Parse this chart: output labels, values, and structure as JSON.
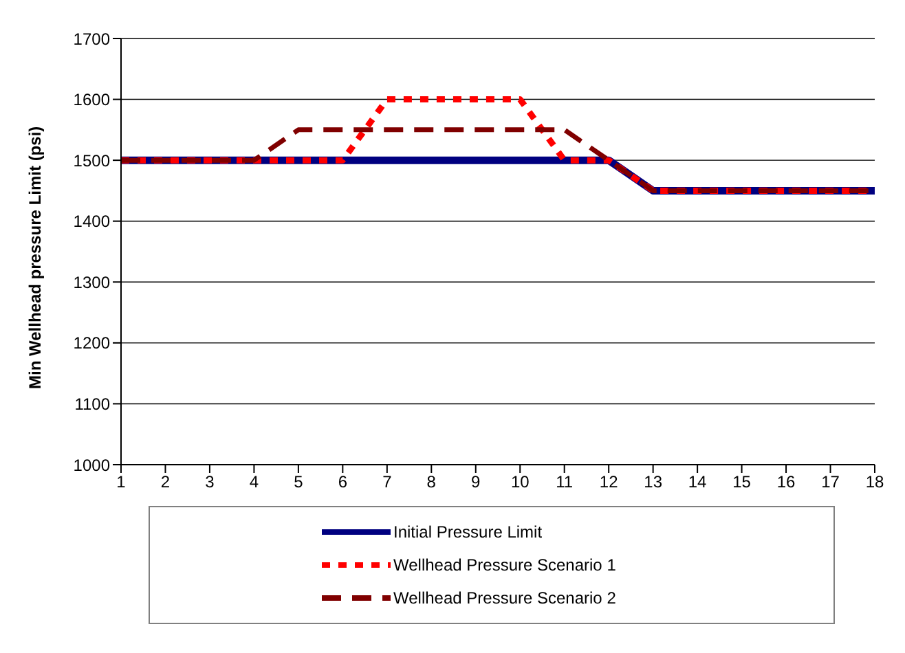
{
  "chart_data": {
    "type": "line",
    "ylabel": "Min Wellhead pressure Limit (psi)",
    "x": [
      1,
      2,
      3,
      4,
      5,
      6,
      7,
      8,
      9,
      10,
      11,
      12,
      13,
      14,
      15,
      16,
      17,
      18
    ],
    "xlim": [
      1,
      18
    ],
    "xticks": [
      1,
      2,
      3,
      4,
      5,
      6,
      7,
      8,
      9,
      10,
      11,
      12,
      13,
      14,
      15,
      16,
      17,
      18
    ],
    "ylim": [
      1000,
      1700
    ],
    "yticks": [
      1000,
      1100,
      1200,
      1300,
      1400,
      1500,
      1600,
      1700
    ],
    "grid": "y",
    "legend": "bottom",
    "marker": "none",
    "series": [
      {
        "name": "Initial Pressure Limit",
        "color": "#000080",
        "line_style": "solid",
        "values": [
          1500,
          1500,
          1500,
          1500,
          1500,
          1500,
          1500,
          1500,
          1500,
          1500,
          1500,
          1500,
          1450,
          1450,
          1450,
          1450,
          1450,
          1450
        ]
      },
      {
        "name": "Wellhead Pressure Scenario 1",
        "color": "#ff0000",
        "line_style": "dotted",
        "values": [
          1500,
          1500,
          1500,
          1500,
          1500,
          1500,
          1600,
          1600,
          1600,
          1600,
          1500,
          1500,
          1450,
          1450,
          1450,
          1450,
          1450,
          1450
        ]
      },
      {
        "name": "Wellhead Pressure Scenario 2",
        "color": "#800000",
        "line_style": "dashed",
        "values": [
          1500,
          1500,
          1500,
          1500,
          1550,
          1550,
          1550,
          1550,
          1550,
          1550,
          1550,
          1500,
          1450,
          1450,
          1450,
          1450,
          1450,
          1450
        ]
      }
    ]
  }
}
